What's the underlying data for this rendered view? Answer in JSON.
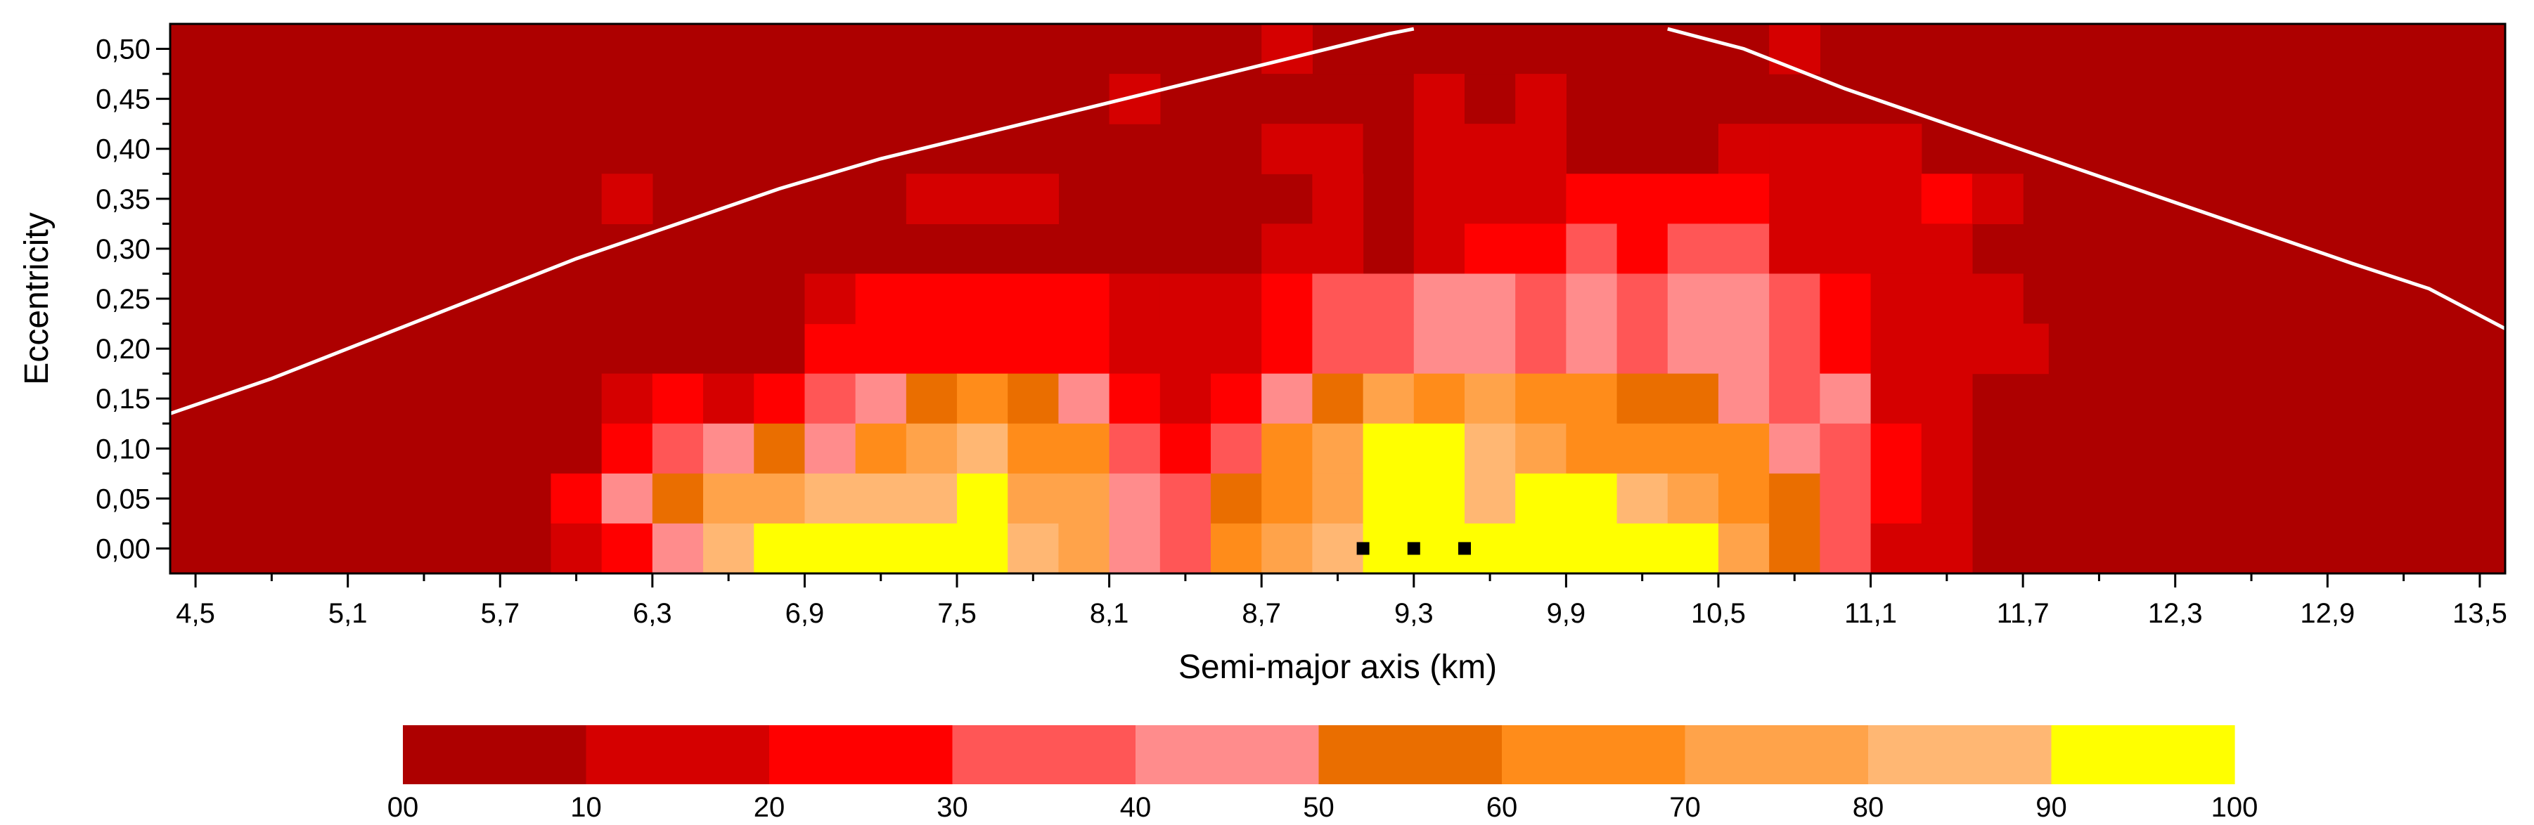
{
  "chart_data": {
    "type": "heatmap",
    "title": "",
    "xlabel": "Semi-major axis (km)",
    "ylabel": "Eccentricity",
    "xlim": [
      4.4,
      13.6
    ],
    "ylim": [
      -0.025,
      0.525
    ],
    "x_ticks": [
      4.5,
      5.1,
      5.7,
      6.3,
      6.9,
      7.5,
      8.1,
      8.7,
      9.3,
      9.9,
      10.5,
      11.1,
      11.7,
      12.3,
      12.9,
      13.5
    ],
    "x_tick_labels": [
      "4,5",
      "5,1",
      "5,7",
      "6,3",
      "6,9",
      "7,5",
      "8,1",
      "8,7",
      "9,3",
      "9,9",
      "10,5",
      "11,1",
      "11,7",
      "12,3",
      "12,9",
      "13,5"
    ],
    "y_ticks": [
      0,
      0.05,
      0.1,
      0.15,
      0.2,
      0.25,
      0.3,
      0.35,
      0.4,
      0.45,
      0.5
    ],
    "y_tick_labels": [
      "0,00",
      "0,05",
      "0,10",
      "0,15",
      "0,20",
      "0,25",
      "0,30",
      "0,35",
      "0,40",
      "0,45",
      "0,50"
    ],
    "cell_x_start": 4.4,
    "cell_dx": 0.2,
    "cell_de": 0.05,
    "background_bin": 0,
    "grid": false,
    "rows": [
      {
        "e": 0.5,
        "cells": [
          [
            8.7,
            1
          ],
          [
            10.7,
            1
          ]
        ]
      },
      {
        "e": 0.45,
        "cells": [
          [
            8.1,
            1
          ],
          [
            8.7,
            0
          ],
          [
            8.9,
            0
          ],
          [
            9.1,
            0
          ],
          [
            9.3,
            1
          ],
          [
            9.5,
            0
          ],
          [
            9.7,
            1
          ]
        ]
      },
      {
        "e": 0.4,
        "cells": [
          [
            8.7,
            1
          ],
          [
            8.9,
            1
          ],
          [
            9.1,
            0
          ],
          [
            9.3,
            1
          ],
          [
            9.5,
            1
          ],
          [
            9.7,
            1
          ],
          [
            10.5,
            1
          ],
          [
            10.7,
            1
          ],
          [
            10.9,
            1
          ],
          [
            11.1,
            1
          ]
        ]
      },
      {
        "e": 0.35,
        "cells": [
          [
            6.1,
            1
          ],
          [
            7.3,
            1
          ],
          [
            7.5,
            1
          ],
          [
            7.7,
            1
          ],
          [
            8.9,
            1
          ],
          [
            9.3,
            1
          ],
          [
            9.5,
            1
          ],
          [
            9.7,
            1
          ],
          [
            9.9,
            2
          ],
          [
            10.1,
            2
          ],
          [
            10.3,
            2
          ],
          [
            10.5,
            2
          ],
          [
            10.7,
            1
          ],
          [
            10.9,
            1
          ],
          [
            11.1,
            1
          ],
          [
            11.3,
            2
          ],
          [
            11.5,
            1
          ]
        ]
      },
      {
        "e": 0.3,
        "cells": [
          [
            8.7,
            1
          ],
          [
            8.9,
            1
          ],
          [
            9.3,
            1
          ],
          [
            9.5,
            2
          ],
          [
            9.7,
            2
          ],
          [
            9.9,
            3
          ],
          [
            10.1,
            2
          ],
          [
            10.3,
            3
          ],
          [
            10.5,
            3
          ],
          [
            10.7,
            1
          ],
          [
            10.9,
            1
          ],
          [
            11.1,
            1
          ],
          [
            11.3,
            1
          ]
        ]
      },
      {
        "e": 0.25,
        "cells": [
          [
            6.9,
            1
          ],
          [
            7.1,
            2
          ],
          [
            7.3,
            2
          ],
          [
            7.5,
            2
          ],
          [
            7.7,
            2
          ],
          [
            7.9,
            2
          ],
          [
            8.1,
            1
          ],
          [
            8.3,
            1
          ],
          [
            8.5,
            1
          ],
          [
            8.7,
            2
          ],
          [
            8.9,
            3
          ],
          [
            9.1,
            3
          ],
          [
            9.3,
            4
          ],
          [
            9.5,
            4
          ],
          [
            9.7,
            3
          ],
          [
            9.9,
            4
          ],
          [
            10.1,
            3
          ],
          [
            10.3,
            4
          ],
          [
            10.5,
            4
          ],
          [
            10.7,
            3
          ],
          [
            10.9,
            2
          ],
          [
            11.1,
            1
          ],
          [
            11.3,
            1
          ],
          [
            11.5,
            1
          ]
        ]
      },
      {
        "e": 0.15,
        "cells": [
          [
            6.1,
            1
          ],
          [
            6.3,
            2
          ],
          [
            6.5,
            1
          ],
          [
            6.7,
            2
          ],
          [
            6.9,
            3
          ],
          [
            7.1,
            4
          ],
          [
            7.3,
            5
          ],
          [
            7.5,
            6
          ],
          [
            7.7,
            5
          ],
          [
            7.9,
            4
          ],
          [
            8.1,
            2
          ],
          [
            8.3,
            1
          ],
          [
            8.5,
            2
          ],
          [
            8.7,
            4
          ],
          [
            8.9,
            5
          ],
          [
            9.1,
            7
          ],
          [
            9.3,
            6
          ],
          [
            9.5,
            7
          ],
          [
            9.7,
            6
          ],
          [
            9.9,
            6
          ],
          [
            10.1,
            5
          ],
          [
            10.3,
            5
          ],
          [
            10.5,
            4
          ],
          [
            10.7,
            3
          ],
          [
            10.9,
            4
          ],
          [
            11.1,
            1
          ],
          [
            11.3,
            1
          ]
        ]
      },
      {
        "e": 0.1,
        "cells": [
          [
            6.1,
            2
          ],
          [
            6.3,
            3
          ],
          [
            6.5,
            4
          ],
          [
            6.7,
            5
          ],
          [
            6.9,
            4
          ],
          [
            7.1,
            6
          ],
          [
            7.3,
            7
          ],
          [
            7.5,
            8
          ],
          [
            7.7,
            6
          ],
          [
            7.9,
            6
          ],
          [
            8.1,
            3
          ],
          [
            8.3,
            2
          ],
          [
            8.5,
            3
          ],
          [
            8.7,
            6
          ],
          [
            8.9,
            7
          ],
          [
            9.1,
            9
          ],
          [
            9.3,
            9
          ],
          [
            9.5,
            8
          ],
          [
            9.7,
            7
          ],
          [
            9.9,
            6
          ],
          [
            10.1,
            6
          ],
          [
            10.3,
            6
          ],
          [
            10.5,
            6
          ],
          [
            10.7,
            4
          ],
          [
            10.9,
            3
          ],
          [
            11.1,
            2
          ],
          [
            11.3,
            1
          ]
        ]
      },
      {
        "e": 0.05,
        "cells": [
          [
            5.9,
            2
          ],
          [
            6.1,
            4
          ],
          [
            6.3,
            5
          ],
          [
            6.5,
            7
          ],
          [
            6.7,
            7
          ],
          [
            6.9,
            8
          ],
          [
            7.1,
            8
          ],
          [
            7.3,
            8
          ],
          [
            7.5,
            9
          ],
          [
            7.7,
            7
          ],
          [
            7.9,
            7
          ],
          [
            8.1,
            4
          ],
          [
            8.3,
            3
          ],
          [
            8.5,
            5
          ],
          [
            8.7,
            6
          ],
          [
            8.9,
            7
          ],
          [
            9.1,
            9
          ],
          [
            9.3,
            9
          ],
          [
            9.5,
            8
          ],
          [
            9.7,
            9
          ],
          [
            9.9,
            9
          ],
          [
            10.1,
            8
          ],
          [
            10.3,
            7
          ],
          [
            10.5,
            6
          ],
          [
            10.7,
            5
          ],
          [
            10.9,
            3
          ],
          [
            11.1,
            2
          ],
          [
            11.3,
            1
          ]
        ]
      },
      {
        "e": 0.0,
        "cells": [
          [
            5.9,
            1
          ],
          [
            6.1,
            2
          ],
          [
            6.3,
            4
          ],
          [
            6.5,
            8
          ],
          [
            6.7,
            9
          ],
          [
            6.9,
            9
          ],
          [
            7.1,
            9
          ],
          [
            7.3,
            9
          ],
          [
            7.5,
            9
          ],
          [
            7.7,
            8
          ],
          [
            7.9,
            7
          ],
          [
            8.1,
            4
          ],
          [
            8.3,
            3
          ],
          [
            8.5,
            6
          ],
          [
            8.7,
            7
          ],
          [
            8.9,
            8
          ],
          [
            9.1,
            9
          ],
          [
            9.3,
            9
          ],
          [
            9.5,
            9
          ],
          [
            9.7,
            9
          ],
          [
            9.9,
            9
          ],
          [
            10.1,
            9
          ],
          [
            10.3,
            9
          ],
          [
            10.5,
            7
          ],
          [
            10.7,
            5
          ],
          [
            10.9,
            3
          ],
          [
            11.1,
            1
          ],
          [
            11.3,
            1
          ]
        ]
      }
    ],
    "row_fills": [
      {
        "e": 0.2,
        "x_from": 6.9,
        "x_to": 8.0,
        "bin": 2
      },
      {
        "e": 0.2,
        "x_from": 8.1,
        "x_to": 8.6,
        "bin": 1
      },
      {
        "e": 0.2,
        "x_from": 8.7,
        "x_to": 8.8,
        "bin": 2
      },
      {
        "e": 0.2,
        "x_from": 8.9,
        "x_to": 9.2,
        "bin": 3
      },
      {
        "e": 0.2,
        "x_from": 9.3,
        "x_to": 9.6,
        "bin": 4
      },
      {
        "e": 0.2,
        "x_from": 9.7,
        "x_to": 9.8,
        "bin": 3
      },
      {
        "e": 0.2,
        "x_from": 9.9,
        "x_to": 10.0,
        "bin": 4
      },
      {
        "e": 0.2,
        "x_from": 10.1,
        "x_to": 10.2,
        "bin": 3
      },
      {
        "e": 0.2,
        "x_from": 10.3,
        "x_to": 10.6,
        "bin": 4
      },
      {
        "e": 0.2,
        "x_from": 10.7,
        "x_to": 10.8,
        "bin": 3
      },
      {
        "e": 0.2,
        "x_from": 10.9,
        "x_to": 11.0,
        "bin": 2
      },
      {
        "e": 0.2,
        "x_from": 11.1,
        "x_to": 11.6,
        "bin": 1
      }
    ],
    "colorbar": {
      "bins": [
        {
          "from": 0,
          "to": 10,
          "color": "#ad0000"
        },
        {
          "from": 10,
          "to": 20,
          "color": "#d50000"
        },
        {
          "from": 20,
          "to": 30,
          "color": "#ff0000"
        },
        {
          "from": 30,
          "to": 40,
          "color": "#ff5656"
        },
        {
          "from": 40,
          "to": 50,
          "color": "#ff8c8c"
        },
        {
          "from": 50,
          "to": 60,
          "color": "#ea6e00"
        },
        {
          "from": 60,
          "to": 70,
          "color": "#ff8c1a"
        },
        {
          "from": 70,
          "to": 80,
          "color": "#ffa34a"
        },
        {
          "from": 80,
          "to": 90,
          "color": "#ffb773"
        },
        {
          "from": 90,
          "to": 100,
          "color": "#ffff00"
        }
      ],
      "tick_labels": [
        "00",
        "10",
        "20",
        "30",
        "40",
        "50",
        "60",
        "70",
        "80",
        "90",
        "100"
      ]
    },
    "curves": [
      {
        "color": "#ffffff",
        "points": [
          [
            4.4,
            0.135
          ],
          [
            4.8,
            0.17
          ],
          [
            5.2,
            0.21
          ],
          [
            5.6,
            0.25
          ],
          [
            6.0,
            0.29
          ],
          [
            6.4,
            0.325
          ],
          [
            6.8,
            0.36
          ],
          [
            7.2,
            0.39
          ],
          [
            7.6,
            0.415
          ],
          [
            8.0,
            0.44
          ],
          [
            8.4,
            0.465
          ],
          [
            8.8,
            0.49
          ],
          [
            9.2,
            0.515
          ],
          [
            9.3,
            0.52
          ]
        ]
      },
      {
        "color": "#ffffff",
        "points": [
          [
            10.3,
            0.52
          ],
          [
            10.6,
            0.5
          ],
          [
            11.0,
            0.46
          ],
          [
            11.4,
            0.425
          ],
          [
            11.8,
            0.39
          ],
          [
            12.2,
            0.355
          ],
          [
            12.6,
            0.32
          ],
          [
            13.0,
            0.285
          ],
          [
            13.3,
            0.26
          ],
          [
            13.6,
            0.22
          ]
        ]
      }
    ],
    "markers": {
      "color": "#000000",
      "points": [
        [
          9.1,
          0.0
        ],
        [
          9.3,
          0.0
        ],
        [
          9.5,
          0.0
        ]
      ]
    }
  }
}
